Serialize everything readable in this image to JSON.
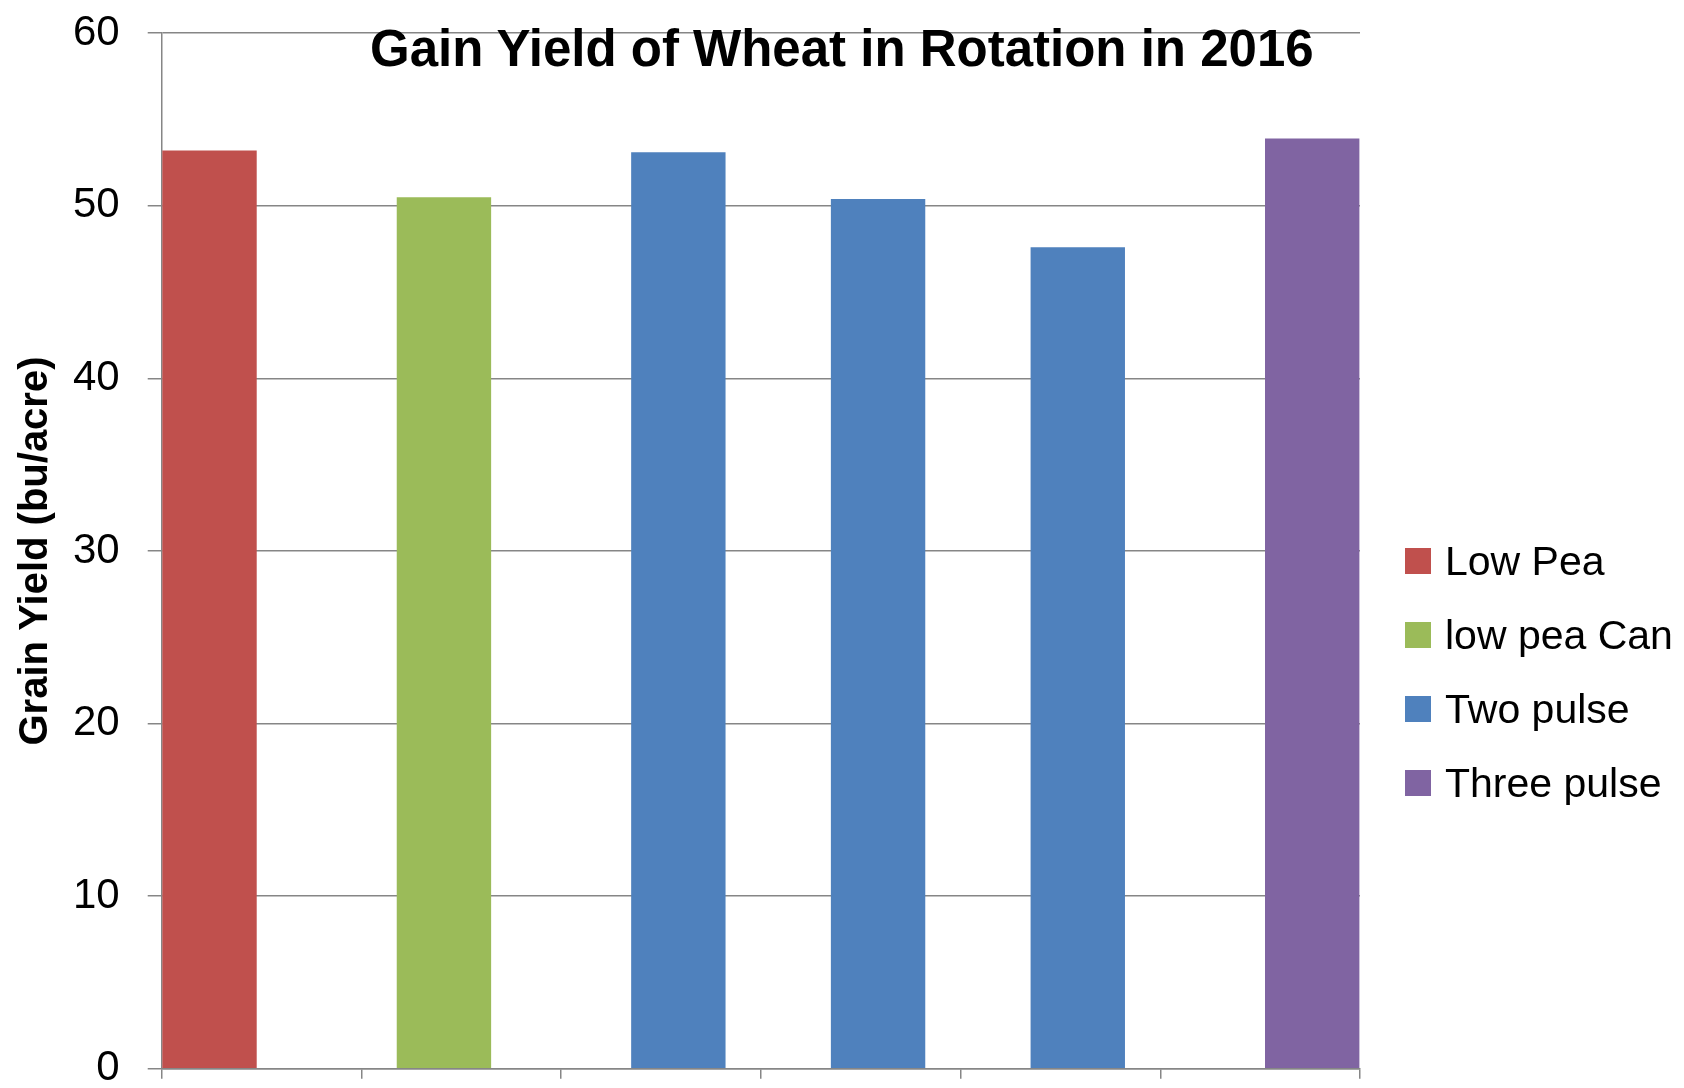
{
  "chart_data": {
    "type": "bar",
    "title": "Gain Yield of Wheat in Rotation in 2016",
    "ylabel": "Grain Yield (bu/acre)",
    "categories": [
      null,
      null,
      null,
      null,
      null,
      null
    ],
    "series": [
      {
        "name": "Low Pea",
        "color": "#c0504d",
        "values": [
          53.2,
          null,
          null,
          null,
          null,
          null
        ]
      },
      {
        "name": "low pea Can",
        "color": "#9bbb59",
        "values": [
          null,
          50.5,
          null,
          null,
          null,
          null
        ]
      },
      {
        "name": "Two pulse",
        "color": "#4f81bd",
        "values": [
          null,
          null,
          53.1,
          50.4,
          47.6,
          null
        ]
      },
      {
        "name": "Three pulse",
        "color": "#8064a2",
        "values": [
          null,
          null,
          null,
          null,
          null,
          53.9
        ]
      }
    ],
    "ylim": [
      0,
      60
    ],
    "yticks": [
      0,
      10,
      20,
      30,
      40,
      50,
      60
    ],
    "grid": "y",
    "legend": "right"
  }
}
